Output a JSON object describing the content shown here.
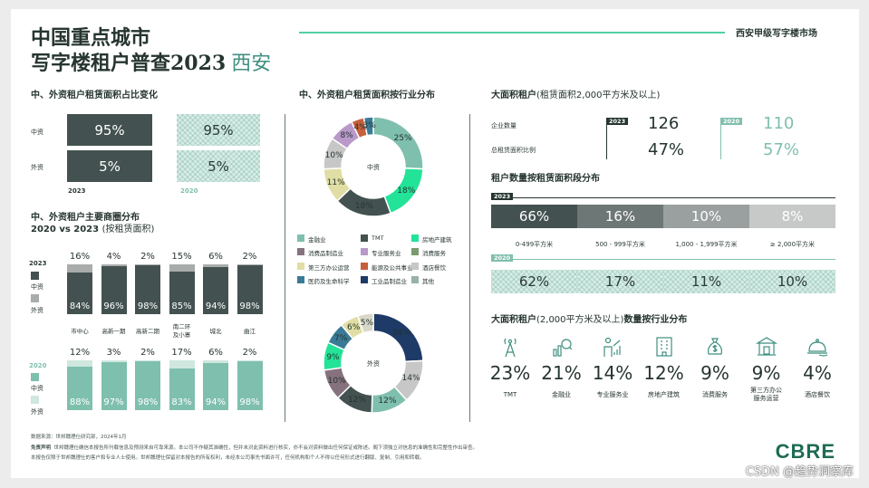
{
  "header": {
    "title_line1": "中国重点城市",
    "title_line2": "写字楼租户普查2023",
    "city": "西安",
    "tag": "西安甲级写字楼市场"
  },
  "share_change": {
    "title": "中、外资租户租赁面积占比变化",
    "rows": [
      {
        "label": "中资",
        "v2023": "95%",
        "v2020": "95%"
      },
      {
        "label": "外资",
        "v2023": "5%",
        "v2020": "5%"
      }
    ],
    "year_a": "2023",
    "year_b": "2020"
  },
  "districts": {
    "title_line1": "中、外资租户主要商圈分布",
    "title_line2_bold": "2020 vs 2023",
    "title_line2_light": "(按租赁面积)",
    "legend_2023": {
      "year": "2023",
      "cn": "中资",
      "fx": "外资"
    },
    "legend_2020": {
      "year": "2020",
      "cn": "中资",
      "fx": "外资"
    },
    "categories": [
      "市中心",
      "高新一期",
      "高新二期",
      "曲江二环及小寨",
      "城北",
      "曲江"
    ],
    "category_lines": [
      [
        "市中心"
      ],
      [
        "高新一期"
      ],
      [
        "高新二期"
      ],
      [
        "南二环",
        "及小寨"
      ],
      [
        "城北"
      ],
      [
        "曲江"
      ]
    ],
    "y2023": {
      "cn": [
        "84%",
        "96%",
        "98%",
        "85%",
        "94%",
        "98%"
      ],
      "fx": [
        "16%",
        "4%",
        "2%",
        "15%",
        "6%",
        "2%"
      ]
    },
    "y2020": {
      "cn": [
        "88%",
        "97%",
        "98%",
        "83%",
        "94%",
        "98%"
      ],
      "fx": [
        "12%",
        "3%",
        "2%",
        "17%",
        "6%",
        "2%"
      ]
    }
  },
  "industry": {
    "title": "中、外资租户租赁面积按行业分布",
    "cn_center": "中资",
    "fx_center": "外资",
    "colors": [
      "#7fbfae",
      "#22e398",
      "#435250",
      "#e0dea4",
      "#c7c7c7",
      "#b899c9",
      "#c75f3c",
      "#3a7a96",
      "#86727f",
      "#1e3a66"
    ],
    "legend": [
      {
        "label": "金融业",
        "color": "#7fbfae"
      },
      {
        "label": "TMT",
        "color": "#435250"
      },
      {
        "label": "房地产建筑",
        "color": "#22e398"
      },
      {
        "label": "消费品制造业",
        "color": "#86727f"
      },
      {
        "label": "专业服务业",
        "color": "#b899c9"
      },
      {
        "label": "消费服务",
        "color": "#7a9a70"
      },
      {
        "label": "第三方办公运营",
        "color": "#e0dea4"
      },
      {
        "label": "能源及公共事业",
        "color": "#c75f3c"
      },
      {
        "label": "酒店餐饮",
        "color": "#c7c7c7"
      },
      {
        "label": "医药及生命科学",
        "color": "#3a7a96"
      },
      {
        "label": "工业品制造业",
        "color": "#1e3a66"
      },
      {
        "label": "其他",
        "color": "#99b0ac"
      }
    ]
  },
  "chart_data": [
    {
      "type": "pie",
      "title": "中资",
      "labels": [
        "金融业",
        "房地产建筑",
        "TMT",
        "第三方办公运营",
        "其他",
        "专业服务业",
        "能源及公共事业",
        "医药及生命科学"
      ],
      "values": [
        25,
        18,
        18,
        11,
        10,
        8,
        4,
        3
      ],
      "value_labels": [
        "25%",
        "18%",
        "18%",
        "11%",
        "10%",
        "8%",
        "4%",
        "3%"
      ],
      "colors": [
        "#7fbfae",
        "#22e398",
        "#435250",
        "#e0dea4",
        "#c7c7c7",
        "#b899c9",
        "#c75f3c",
        "#3a7a96"
      ]
    },
    {
      "type": "pie",
      "title": "外资",
      "labels": [
        "工业品制造业",
        "其他",
        "金融业",
        "TMT",
        "消费品制造业",
        "能源及公共事业",
        "医药及生命科学",
        "第三方办公运营",
        "酒店餐饮"
      ],
      "values": [
        24,
        14,
        12,
        12,
        10,
        9,
        7,
        6,
        5
      ],
      "value_labels": [
        "24%",
        "14%",
        "12%",
        "12%",
        "10%",
        "9%",
        "7%",
        "6%",
        "5%"
      ],
      "colors": [
        "#1e3a66",
        "#c7c7c7",
        "#7fbfae",
        "#435250",
        "#86727f",
        "#22e398",
        "#3a7a96",
        "#e0dea4",
        "#d8d8c8"
      ]
    }
  ],
  "large_tenants": {
    "title_bold": "大面积租户",
    "title_light": "(租赁面积2,000平方米及以上)",
    "row1_label": "企业数量",
    "row2_label": "总租赁面积比例",
    "y2023": {
      "year": "2023",
      "count": "126",
      "share": "47%"
    },
    "y2020": {
      "year": "2020",
      "count": "110",
      "share": "57%"
    }
  },
  "size_bands": {
    "title": "租户数量按租赁面积段分布",
    "year_a": "2023",
    "year_b": "2020",
    "bands": [
      "0-499平方米",
      "500 - 999平方米",
      "1,000 - 1,999平方米",
      "≥ 2,000平方米"
    ],
    "v2023": [
      "66%",
      "16%",
      "10%",
      "8%"
    ],
    "v2020": [
      "62%",
      "17%",
      "11%",
      "10%"
    ],
    "colors2023": [
      "#435250",
      "#6d7775",
      "#9aa09f",
      "#c6c9c8"
    ]
  },
  "large_by_industry": {
    "title_bold": "大面积租户",
    "title_light": "(2,000平方米及以上)",
    "title_tail": "数量按行业分布",
    "items": [
      {
        "icon": "tower-icon",
        "pct": "23%",
        "name_lines": [
          "TMT"
        ]
      },
      {
        "icon": "finance-icon",
        "pct": "21%",
        "name_lines": [
          "金融业"
        ]
      },
      {
        "icon": "professional-icon",
        "pct": "14%",
        "name_lines": [
          "专业服务业"
        ]
      },
      {
        "icon": "building-icon",
        "pct": "12%",
        "name_lines": [
          "房地产建筑"
        ]
      },
      {
        "icon": "money-bag-icon",
        "pct": "9%",
        "name_lines": [
          "消费服务"
        ]
      },
      {
        "icon": "office-operator-icon",
        "pct": "9%",
        "name_lines": [
          "第三方办公",
          "服务运营"
        ]
      },
      {
        "icon": "cloche-icon",
        "pct": "4%",
        "name_lines": [
          "酒店餐饮"
        ]
      }
    ]
  },
  "footer": {
    "source": "数据来源：世邦魏理仕研究部，2024年1月",
    "disclaimer_label": "免责声明",
    "disclaimer1": "世邦魏理仕确信本报告所刊载信息及预测来自可靠来源。本公司不作疑其准确性，但并未对此资料进行核实，亦不会对资料做出任何保证或陈述。阁下须独立对信息的准确性和完整性作出审查。",
    "disclaimer2": "本报告仅限于世邦魏理仕的客户和专业人士使用。世邦魏理仕保留对本报告的所有权利，未经本公司事先书面许可，任何机构和个人不得以任何形式进行翻版、复制、引用和转载。",
    "logo": "CBRE",
    "watermark": "CSDN @趋势洞察库"
  }
}
